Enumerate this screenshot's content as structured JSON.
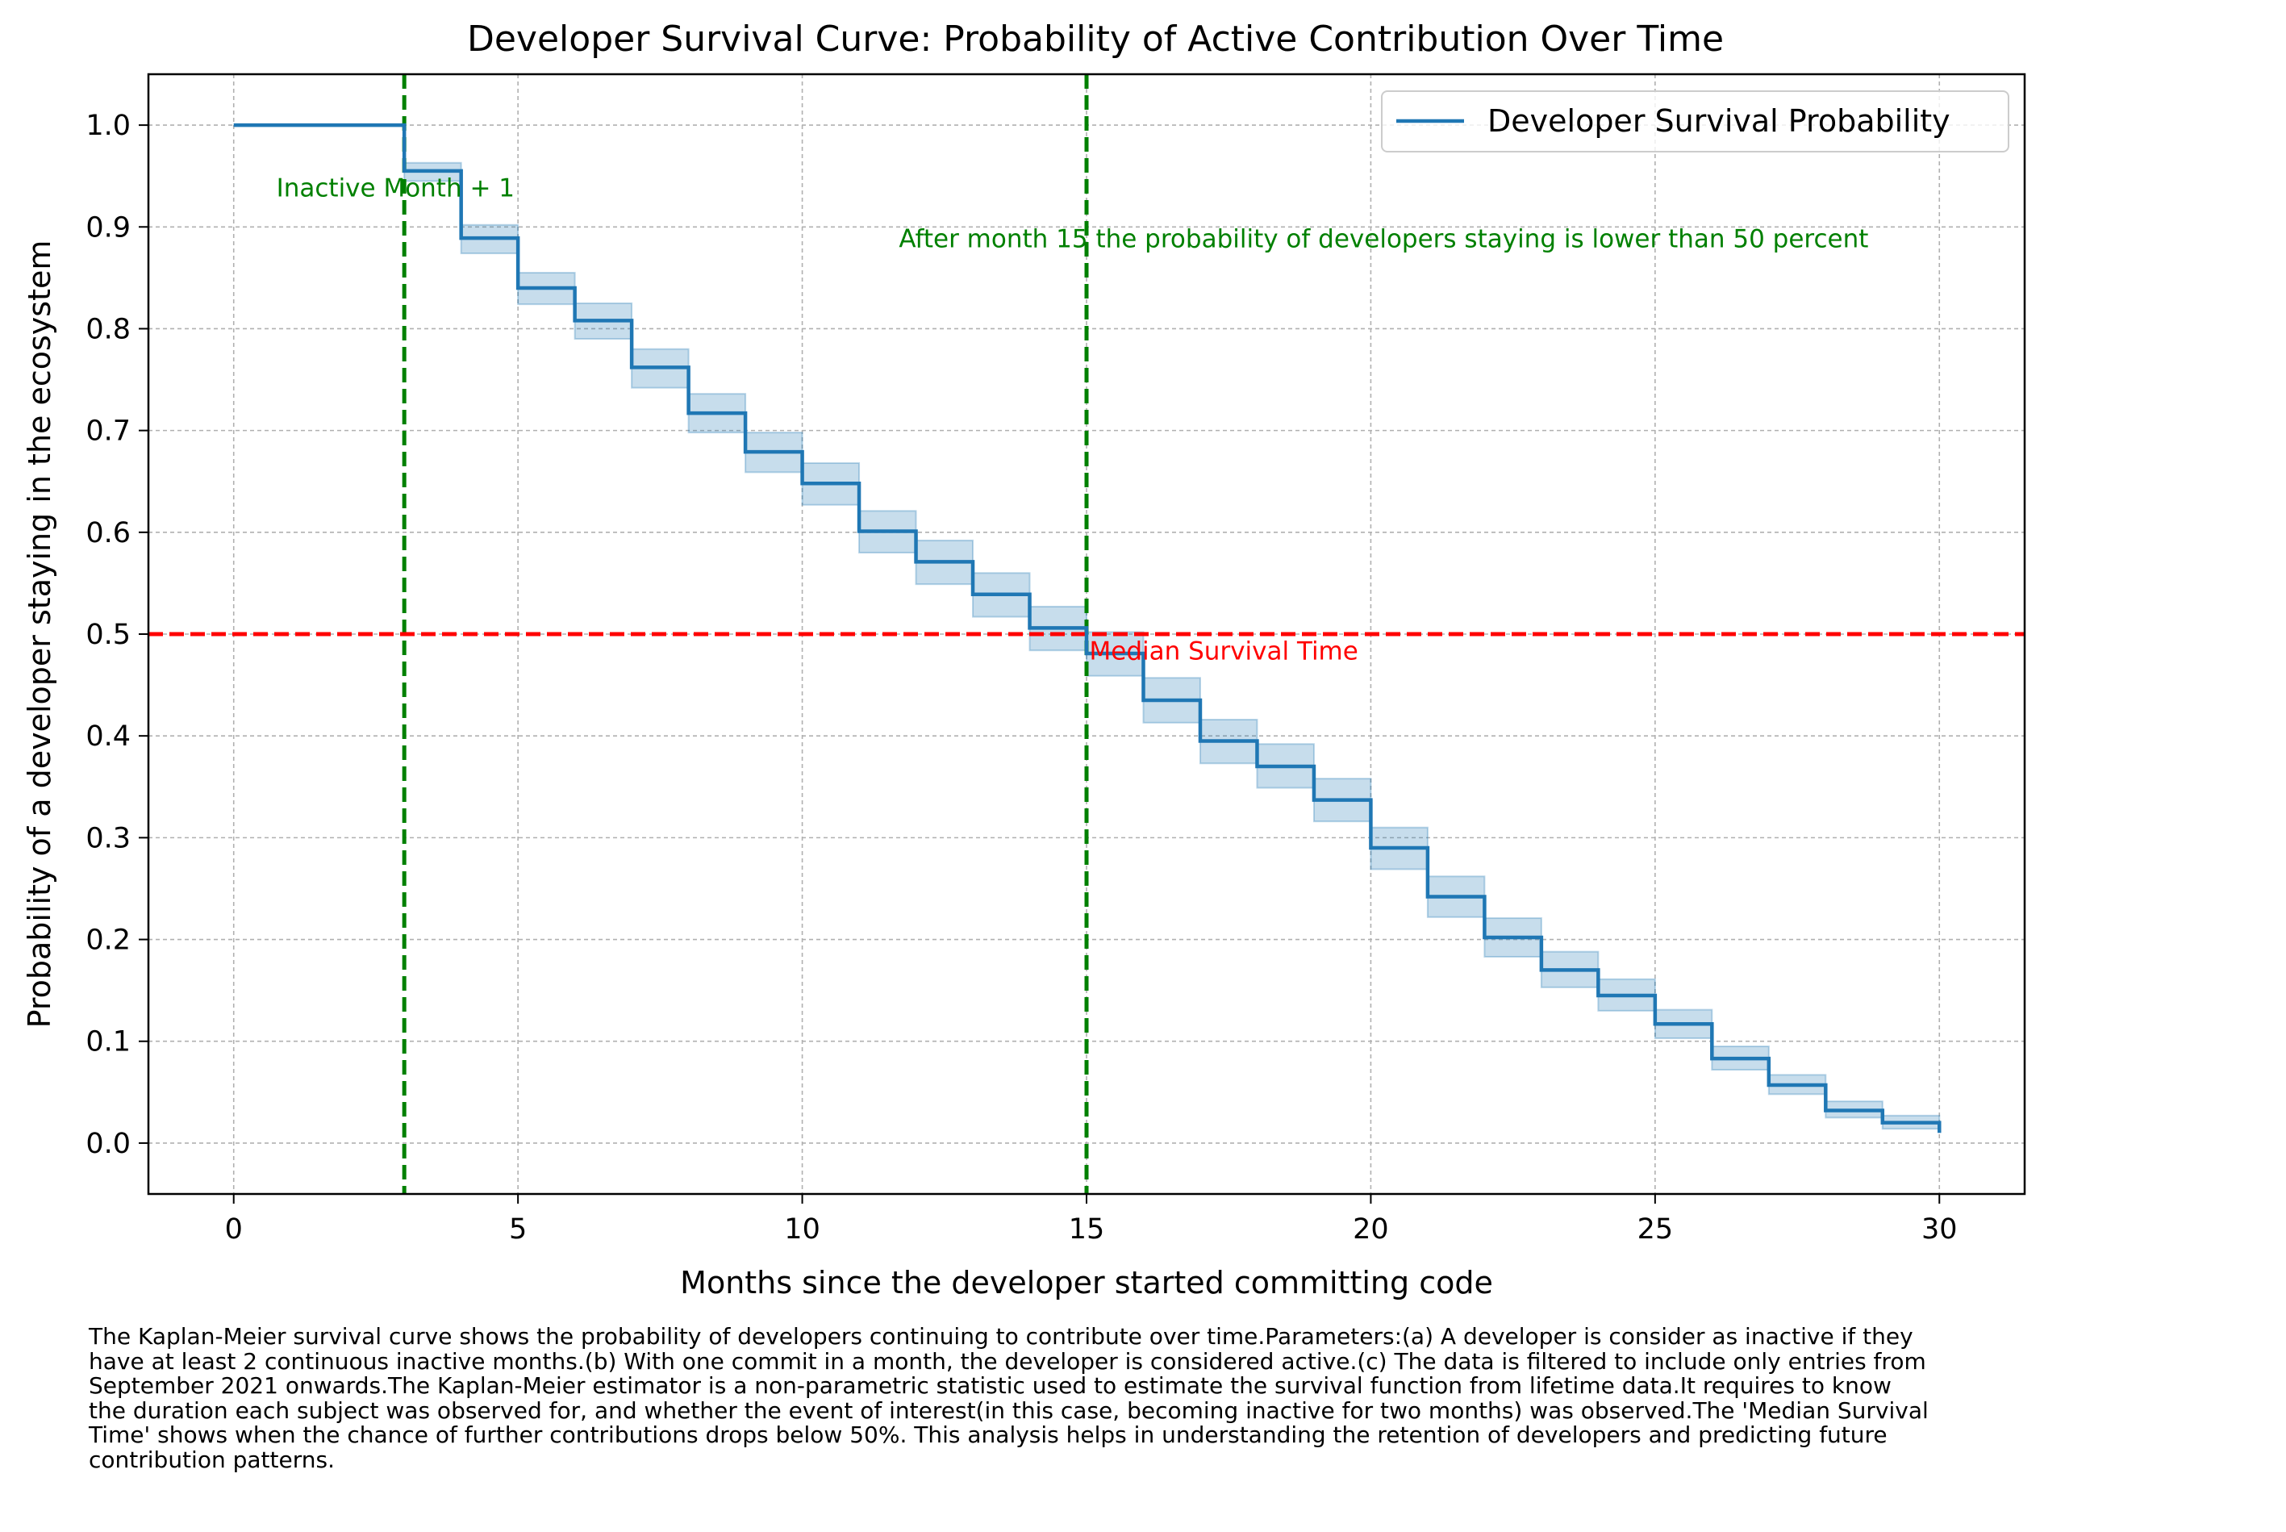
{
  "chart_data": {
    "type": "line",
    "title": "Developer Survival Curve: Probability of Active Contribution Over Time",
    "xlabel": "Months since the developer started committing code",
    "ylabel": "Probability of a developer staying in the ecosystem",
    "xlim": [
      -1.5,
      31.5
    ],
    "ylim": [
      -0.05,
      1.05
    ],
    "xticks": [
      0,
      5,
      10,
      15,
      20,
      25,
      30
    ],
    "yticks": [
      0.0,
      0.1,
      0.2,
      0.3,
      0.4,
      0.5,
      0.6,
      0.7,
      0.8,
      0.9,
      1.0
    ],
    "xtick_labels": [
      "0",
      "5",
      "10",
      "15",
      "20",
      "25",
      "30"
    ],
    "ytick_labels": [
      "0.0",
      "0.1",
      "0.2",
      "0.3",
      "0.4",
      "0.5",
      "0.6",
      "0.7",
      "0.8",
      "0.9",
      "1.0"
    ],
    "grid": true,
    "legend_position": "top-right",
    "series": [
      {
        "name": "Developer Survival Probability",
        "style": "step-post",
        "color": "#1f77b4",
        "x": [
          0,
          3,
          4,
          5,
          6,
          7,
          8,
          9,
          10,
          11,
          12,
          13,
          14,
          15,
          16,
          17,
          18,
          19,
          20,
          21,
          22,
          23,
          24,
          25,
          26,
          27,
          28,
          29,
          30
        ],
        "y": [
          1.0,
          0.955,
          0.889,
          0.84,
          0.808,
          0.762,
          0.717,
          0.679,
          0.648,
          0.601,
          0.571,
          0.539,
          0.506,
          0.481,
          0.435,
          0.395,
          0.37,
          0.337,
          0.29,
          0.242,
          0.202,
          0.17,
          0.145,
          0.117,
          0.083,
          0.057,
          0.032,
          0.02,
          0.01
        ],
        "ci_lower": [
          1.0,
          0.945,
          0.874,
          0.824,
          0.79,
          0.742,
          0.698,
          0.659,
          0.627,
          0.58,
          0.549,
          0.517,
          0.484,
          0.459,
          0.413,
          0.373,
          0.349,
          0.316,
          0.269,
          0.222,
          0.183,
          0.153,
          0.13,
          0.103,
          0.072,
          0.048,
          0.025,
          0.014,
          0.006
        ],
        "ci_upper": [
          1.0,
          0.963,
          0.902,
          0.855,
          0.825,
          0.78,
          0.736,
          0.698,
          0.668,
          0.621,
          0.592,
          0.56,
          0.527,
          0.502,
          0.457,
          0.416,
          0.392,
          0.358,
          0.31,
          0.262,
          0.221,
          0.188,
          0.161,
          0.131,
          0.095,
          0.067,
          0.041,
          0.027,
          0.016
        ]
      }
    ],
    "reference_lines": [
      {
        "orientation": "vertical",
        "value": 3,
        "color": "#008000",
        "style": "dashed"
      },
      {
        "orientation": "vertical",
        "value": 15,
        "color": "#008000",
        "style": "dashed"
      },
      {
        "orientation": "horizontal",
        "value": 0.5,
        "color": "#ff0000",
        "style": "dashed"
      }
    ],
    "annotations": [
      {
        "text": "Inactive Month + 1",
        "x": 0.75,
        "y": 0.93,
        "color": "#008000"
      },
      {
        "text": "After month 15 the probability of developers staying is lower than 50 percent",
        "x": 11.7,
        "y": 0.88,
        "color": "#008000"
      },
      {
        "text": "Median Survival Time",
        "x": 15.05,
        "y": 0.475,
        "color": "#ff0000"
      }
    ]
  },
  "caption": "The Kaplan-Meier survival curve shows the probability of developers continuing to contribute over time.Parameters:(a) A developer is consider as inactive if they\nhave at least 2 continuous inactive months.(b) With one commit in a month, the developer is considered active.(c) The data is filtered to include only entries from\nSeptember 2021 onwards.The Kaplan-Meier estimator is a non-parametric statistic used to estimate the survival function from lifetime data.It requires to know\nthe duration each subject was observed for, and whether the event of interest(in this case, becoming inactive for two months) was observed.The 'Median Survival\nTime' shows when the chance of further contributions drops below 50%. This analysis helps in understanding the retention of developers and predicting future\ncontribution patterns."
}
